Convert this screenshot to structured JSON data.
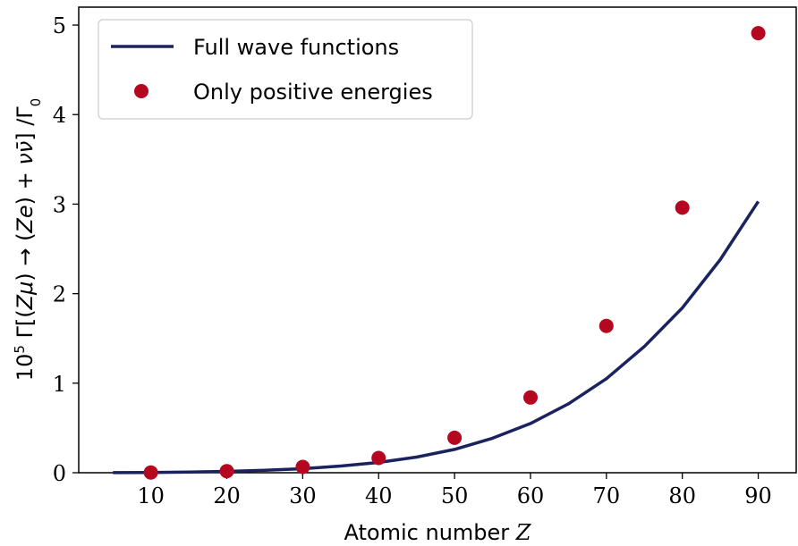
{
  "chart_data": {
    "type": "line",
    "xlabel": "Atomic number Z",
    "ylabel": "10⁵ Γ[(Zμ) → (Ze) + νν̄] / Γ₀",
    "xlim": [
      0.5,
      95
    ],
    "ylim": [
      0,
      5.2
    ],
    "xticks": [
      10,
      20,
      30,
      40,
      50,
      60,
      70,
      80,
      90
    ],
    "yticks": [
      0,
      1,
      2,
      3,
      4,
      5
    ],
    "grid": false,
    "legend_position": "top-left",
    "series": [
      {
        "name": "Full wave functions",
        "kind": "line",
        "color": "#1a2360",
        "x": [
          5,
          10,
          15,
          20,
          25,
          30,
          35,
          40,
          45,
          50,
          55,
          60,
          65,
          70,
          75,
          80,
          85,
          90
        ],
        "y": [
          0.001,
          0.003,
          0.008,
          0.015,
          0.028,
          0.045,
          0.075,
          0.115,
          0.175,
          0.26,
          0.385,
          0.55,
          0.77,
          1.05,
          1.41,
          1.84,
          2.38,
          3.03
        ]
      },
      {
        "name": "Only positive energies",
        "kind": "scatter",
        "color": "#b5071f",
        "x": [
          10,
          20,
          30,
          40,
          50,
          60,
          70,
          80,
          90
        ],
        "y": [
          0.003,
          0.018,
          0.065,
          0.165,
          0.39,
          0.84,
          1.64,
          2.96,
          4.91
        ]
      }
    ]
  }
}
